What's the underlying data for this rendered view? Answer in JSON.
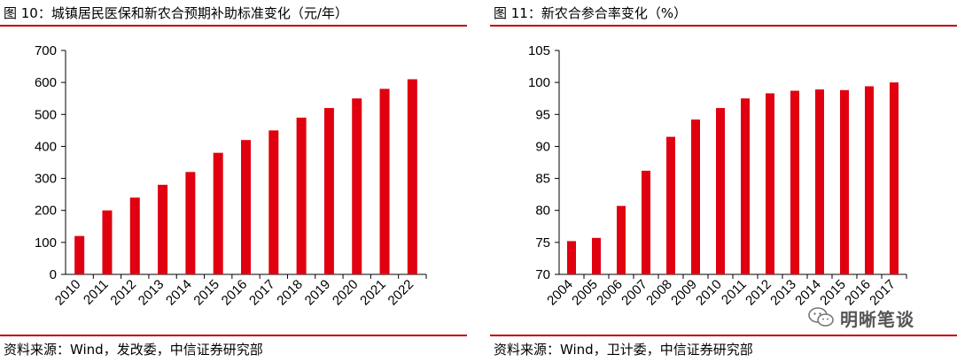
{
  "chart_data": [
    {
      "type": "bar",
      "title": "图 10：城镇居民医保和新农合预期补助标准变化（元/年）",
      "categories": [
        "2010",
        "2011",
        "2012",
        "2013",
        "2014",
        "2015",
        "2016",
        "2017",
        "2018",
        "2019",
        "2020",
        "2021",
        "2022"
      ],
      "values": [
        120,
        200,
        240,
        280,
        320,
        380,
        420,
        450,
        490,
        520,
        550,
        580,
        610
      ],
      "ylim": [
        0,
        700
      ],
      "yticks": [
        0,
        100,
        200,
        300,
        400,
        500,
        600,
        700
      ],
      "color": "#e0000f",
      "source": "资料来源：Wind，发改委，中信证券研究部"
    },
    {
      "type": "bar",
      "title": "图 11：新农合参合率变化（%）",
      "categories": [
        "2004",
        "2005",
        "2006",
        "2007",
        "2008",
        "2009",
        "2010",
        "2011",
        "2012",
        "2013",
        "2014",
        "2015",
        "2016",
        "2017"
      ],
      "values": [
        75.2,
        75.7,
        80.7,
        86.2,
        91.5,
        94.2,
        96.0,
        97.5,
        98.3,
        98.7,
        98.9,
        98.8,
        99.4,
        100.0
      ],
      "ylim": [
        70,
        105
      ],
      "yticks": [
        70,
        75,
        80,
        85,
        90,
        95,
        100,
        105
      ],
      "color": "#e0000f",
      "source": "资料来源：Wind，卫计委，中信证券研究部"
    }
  ],
  "watermark": {
    "text": "明晰笔谈",
    "icon": "wechat-icon"
  }
}
